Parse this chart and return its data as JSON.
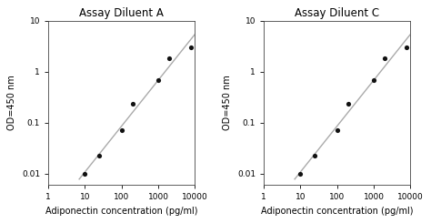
{
  "panel_A": {
    "title": "Assay Diluent A",
    "x_data": [
      10,
      25,
      100,
      200,
      1000,
      2000,
      8000
    ],
    "y_data": [
      0.01,
      0.022,
      0.07,
      0.23,
      0.68,
      1.8,
      3.0
    ],
    "xlabel": "Adiponectin concentration (pg/ml)",
    "ylabel": "OD=450 nm",
    "xlim": [
      1,
      10000
    ],
    "ylim": [
      0.006,
      10
    ]
  },
  "panel_C": {
    "title": "Assay Diluent C",
    "x_data": [
      10,
      25,
      100,
      200,
      1000,
      2000,
      8000
    ],
    "y_data": [
      0.01,
      0.022,
      0.07,
      0.23,
      0.68,
      1.8,
      3.0
    ],
    "xlabel": "Adiponectin concentration (pg/ml)",
    "ylabel": "OD=450 nm",
    "xlim": [
      1,
      10000
    ],
    "ylim": [
      0.006,
      10
    ]
  },
  "line_color": "#aaaaaa",
  "dot_color": "#111111",
  "background_color": "#ffffff",
  "fig_background_color": "#ffffff",
  "dot_size": 14,
  "line_width": 1.0,
  "title_fontsize": 8.5,
  "label_fontsize": 7.0,
  "tick_fontsize": 6.5,
  "ytick_labels": [
    "0.01",
    "0.1",
    "1",
    "10"
  ],
  "ytick_values": [
    0.01,
    0.1,
    1,
    10
  ],
  "xtick_values": [
    1,
    10,
    100,
    1000,
    10000
  ],
  "xtick_labels": [
    "1",
    "10",
    "100",
    "1000",
    "10000"
  ]
}
